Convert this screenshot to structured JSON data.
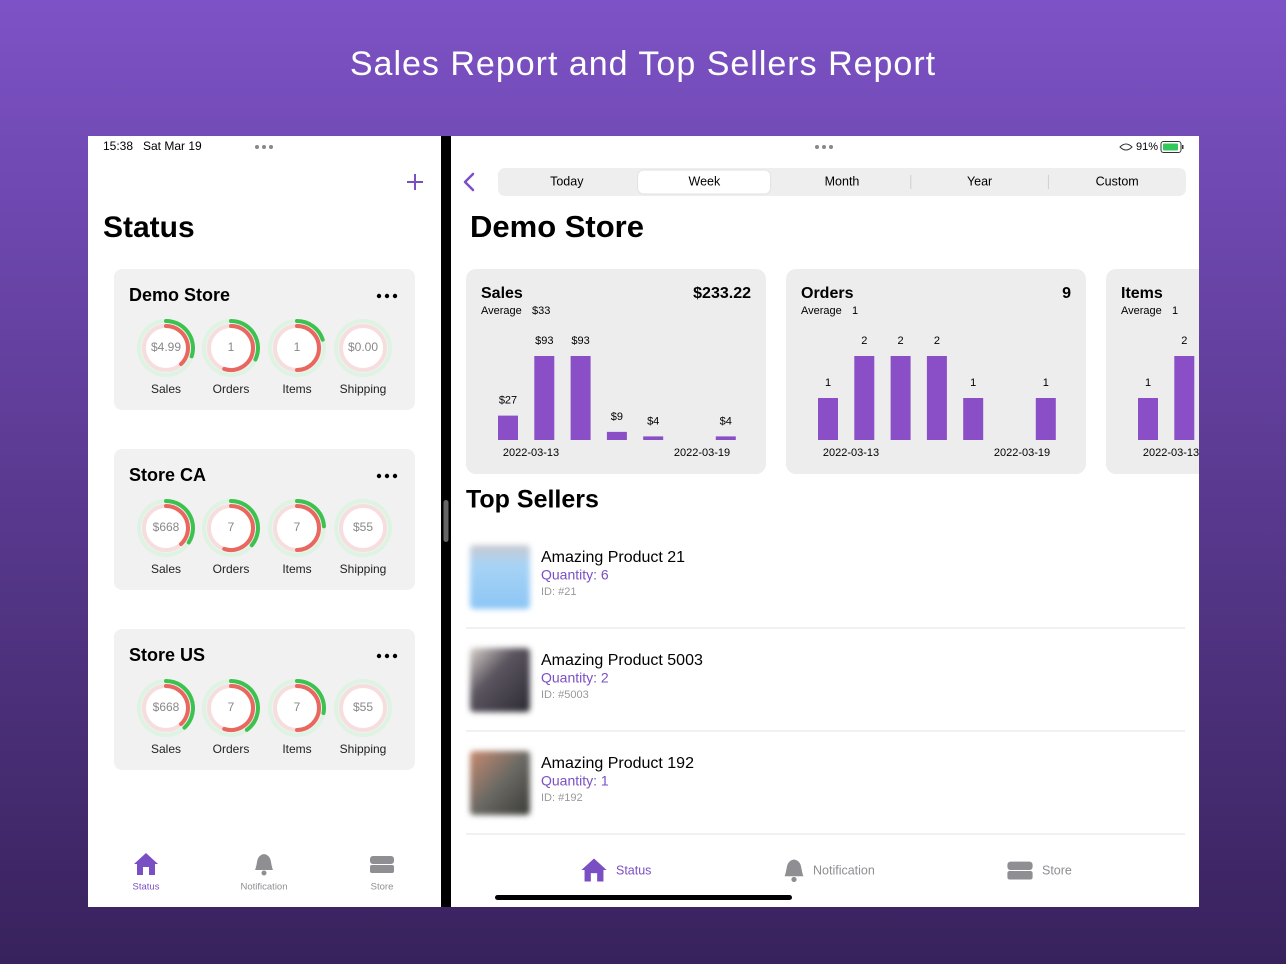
{
  "header": {
    "title": "Sales Report and Top Sellers Report"
  },
  "left_panel": {
    "status_bar": {
      "time": "15:38",
      "date": "Sat Mar 19"
    },
    "heading": "Status",
    "stores": [
      {
        "name": "Demo Store",
        "metrics": [
          {
            "value": "$4.99",
            "label": "Sales"
          },
          {
            "value": "1",
            "label": "Orders"
          },
          {
            "value": "1",
            "label": "Items"
          },
          {
            "value": "$0.00",
            "label": "Shipping"
          }
        ]
      },
      {
        "name": "Store CA",
        "metrics": [
          {
            "value": "$668",
            "label": "Sales"
          },
          {
            "value": "7",
            "label": "Orders"
          },
          {
            "value": "7",
            "label": "Items"
          },
          {
            "value": "$55",
            "label": "Shipping"
          }
        ]
      },
      {
        "name": "Store US",
        "metrics": [
          {
            "value": "$668",
            "label": "Sales"
          },
          {
            "value": "7",
            "label": "Orders"
          },
          {
            "value": "7",
            "label": "Items"
          },
          {
            "value": "$55",
            "label": "Shipping"
          }
        ]
      }
    ],
    "tab_bar": [
      "Status",
      "Notification",
      "Store"
    ]
  },
  "right_panel": {
    "status_bar": {
      "battery": "91%"
    },
    "tabs": [
      "Today",
      "Week",
      "Month",
      "Year",
      "Custom"
    ],
    "selected_tab": 1,
    "store_name": "Demo Store",
    "cards": [
      {
        "title": "Sales",
        "total": "$233.22",
        "average_label": "Average",
        "average": "$33",
        "values": [
          27,
          93,
          93,
          9,
          4,
          null,
          4
        ],
        "value_labels": [
          "$27",
          "$93",
          "$93",
          "$9",
          "$4",
          null,
          "$4"
        ],
        "x_start": "2022-03-13",
        "x_end": "2022-03-19"
      },
      {
        "title": "Orders",
        "total": "9",
        "average_label": "Average",
        "average": "1",
        "values": [
          1,
          2,
          2,
          2,
          1,
          null,
          1
        ],
        "x_start": "2022-03-13",
        "x_end": "2022-03-19"
      },
      {
        "title": "Items",
        "average_label": "Average",
        "average": "1",
        "values": [
          1,
          2
        ],
        "x_start": "2022-03-13"
      }
    ],
    "top_sellers": {
      "title": "Top Sellers",
      "items": [
        {
          "name": "Amazing Product 21",
          "quantity": "Quantity: 6",
          "id": "ID: #21"
        },
        {
          "name": "Amazing Product 5003",
          "quantity": "Quantity: 2",
          "id": "ID: #5003"
        },
        {
          "name": "Amazing Product 192",
          "quantity": "Quantity: 1",
          "id": "ID: #192"
        }
      ]
    },
    "tab_bar": [
      "Status",
      "Notification",
      "Store"
    ]
  }
}
